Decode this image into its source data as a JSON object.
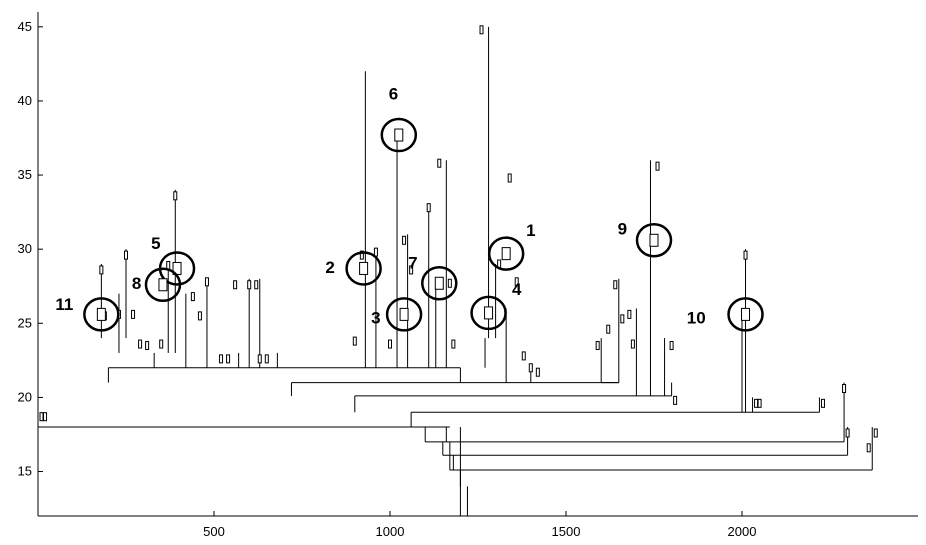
{
  "chart_data": {
    "type": "dendrogram",
    "title": "",
    "xlabel": "",
    "ylabel": "",
    "xlim": [
      0,
      2500
    ],
    "ylim": [
      12,
      46
    ],
    "x_ticks": [
      500,
      1000,
      1500,
      2000
    ],
    "y_ticks": [
      15,
      20,
      25,
      30,
      35,
      40,
      45
    ],
    "grid": false,
    "legend": "none",
    "colors": {
      "axis": "#000000",
      "tree": "#000000",
      "circle": "#000000"
    },
    "trunk": {
      "x": 1200,
      "y_bottom": 12,
      "y_top": 18
    },
    "merges": [
      {
        "x1": 0,
        "x2": 1170,
        "y": 18,
        "x_from": 1160,
        "x_to": 1170
      },
      {
        "x1": 1100,
        "x2": 2290,
        "y": 17
      },
      {
        "x1": 1150,
        "x2": 2300,
        "y": 16.1
      },
      {
        "x1": 1170,
        "x2": 2370,
        "y": 15.1
      },
      {
        "x1": 1060,
        "x2": 2220,
        "y": 19
      },
      {
        "x1": 900,
        "x2": 1800,
        "y": 20.1
      },
      {
        "x1": 720,
        "x2": 1650,
        "y": 21
      },
      {
        "x1": 200,
        "x2": 1200,
        "y": 22
      }
    ],
    "segments": [
      [
        1220,
        12,
        1220,
        14
      ],
      [
        1200,
        14,
        1200,
        15.1
      ],
      [
        1180,
        15.1,
        1180,
        16.1
      ],
      [
        1170,
        16.1,
        1170,
        17
      ],
      [
        1160,
        17,
        1160,
        18
      ],
      [
        1100,
        17,
        1100,
        18
      ],
      [
        2290,
        17,
        2290,
        21
      ],
      [
        1150,
        16.1,
        1150,
        17
      ],
      [
        2300,
        16.1,
        2300,
        18
      ],
      [
        1170,
        15.1,
        1170,
        16.1
      ],
      [
        2370,
        15.1,
        2370,
        18
      ],
      [
        1060,
        18,
        1060,
        19
      ],
      [
        2220,
        19,
        2220,
        20
      ],
      [
        900,
        19,
        900,
        20.1
      ],
      [
        1800,
        20.1,
        1800,
        21
      ],
      [
        720,
        20.1,
        720,
        21
      ],
      [
        1650,
        21,
        1650,
        28
      ],
      [
        200,
        21,
        200,
        22
      ],
      [
        1200,
        21,
        1200,
        22
      ],
      [
        0,
        18,
        0,
        19
      ],
      [
        330,
        22,
        330,
        23
      ],
      [
        570,
        22,
        570,
        23
      ],
      [
        680,
        22,
        680,
        23
      ],
      [
        960,
        22,
        960,
        30
      ],
      [
        1130,
        22,
        1130,
        27.5
      ],
      [
        1330,
        21,
        1330,
        26
      ],
      [
        1400,
        21,
        1400,
        22
      ],
      [
        1700,
        20.1,
        1700,
        26
      ],
      [
        1740,
        20.1,
        1740,
        36
      ],
      [
        1780,
        20.1,
        1780,
        24
      ],
      [
        2000,
        19,
        2000,
        25.5
      ],
      [
        2010,
        19,
        2010,
        30
      ],
      [
        2030,
        19,
        2030,
        20
      ],
      [
        1650,
        21,
        1600,
        21
      ],
      [
        1600,
        21,
        1600,
        24
      ],
      [
        1270,
        22,
        1270,
        24
      ],
      [
        1280,
        24,
        1280,
        45
      ],
      [
        1300,
        24,
        1300,
        29
      ],
      [
        1020,
        22,
        1020,
        38
      ],
      [
        930,
        22,
        930,
        42
      ],
      [
        1050,
        22,
        1050,
        31
      ],
      [
        1160,
        22,
        1160,
        36
      ],
      [
        1110,
        22,
        1110,
        33
      ],
      [
        180,
        24,
        180,
        29
      ],
      [
        230,
        23,
        230,
        27
      ],
      [
        250,
        24,
        250,
        30
      ],
      [
        390,
        23,
        390,
        34
      ],
      [
        370,
        23,
        370,
        29
      ],
      [
        420,
        22,
        420,
        27
      ],
      [
        480,
        22,
        480,
        28
      ],
      [
        600,
        22,
        600,
        28
      ],
      [
        630,
        22,
        630,
        28
      ]
    ],
    "leaves": [
      [
        10,
        18.7
      ],
      [
        20,
        18.7
      ],
      [
        180,
        28.6
      ],
      [
        190,
        25.5
      ],
      [
        230,
        25.6
      ],
      [
        250,
        29.6
      ],
      [
        270,
        25.6
      ],
      [
        290,
        23.6
      ],
      [
        310,
        23.5
      ],
      [
        350,
        23.6
      ],
      [
        370,
        28.9
      ],
      [
        390,
        33.6
      ],
      [
        440,
        26.8
      ],
      [
        460,
        25.5
      ],
      [
        480,
        27.8
      ],
      [
        520,
        22.6
      ],
      [
        540,
        22.6
      ],
      [
        560,
        27.6
      ],
      [
        600,
        27.6
      ],
      [
        620,
        27.6
      ],
      [
        630,
        22.6
      ],
      [
        650,
        22.6
      ],
      [
        900,
        23.8
      ],
      [
        920,
        29.6
      ],
      [
        960,
        29.8
      ],
      [
        1000,
        23.6
      ],
      [
        1040,
        30.6
      ],
      [
        1060,
        28.6
      ],
      [
        1110,
        32.8
      ],
      [
        1140,
        35.8
      ],
      [
        1170,
        27.7
      ],
      [
        1180,
        23.6
      ],
      [
        1260,
        44.8
      ],
      [
        1310,
        29.0
      ],
      [
        1340,
        34.8
      ],
      [
        1360,
        27.8
      ],
      [
        1380,
        22.8
      ],
      [
        1400,
        22.0
      ],
      [
        1420,
        21.7
      ],
      [
        1590,
        23.5
      ],
      [
        1620,
        24.6
      ],
      [
        1640,
        27.6
      ],
      [
        1660,
        25.3
      ],
      [
        1680,
        25.6
      ],
      [
        1690,
        23.6
      ],
      [
        1760,
        35.6
      ],
      [
        1800,
        23.5
      ],
      [
        1810,
        19.8
      ],
      [
        2010,
        29.6
      ],
      [
        2040,
        19.6
      ],
      [
        2050,
        19.6
      ],
      [
        2230,
        19.6
      ],
      [
        2290,
        20.6
      ],
      [
        2300,
        17.6
      ],
      [
        2360,
        16.6
      ],
      [
        2380,
        17.6
      ]
    ],
    "circled_nodes": [
      {
        "label": "1",
        "x": 1330,
        "y": 29.7,
        "label_x": 1400,
        "label_y": 31.2
      },
      {
        "label": "2",
        "x": 925,
        "y": 28.7,
        "label_x": 830,
        "label_y": 28.7
      },
      {
        "label": "3",
        "x": 1040,
        "y": 25.6,
        "label_x": 960,
        "label_y": 25.3
      },
      {
        "label": "4",
        "x": 1280,
        "y": 25.7,
        "label_x": 1360,
        "label_y": 27.2
      },
      {
        "label": "5",
        "x": 395,
        "y": 28.7,
        "label_x": 335,
        "label_y": 30.3
      },
      {
        "label": "6",
        "x": 1025,
        "y": 37.7,
        "label_x": 1010,
        "label_y": 40.4
      },
      {
        "label": "7",
        "x": 1140,
        "y": 27.7,
        "label_x": 1065,
        "label_y": 29.0
      },
      {
        "label": "8",
        "x": 355,
        "y": 27.6,
        "label_x": 280,
        "label_y": 27.6
      },
      {
        "label": "9",
        "x": 1750,
        "y": 30.6,
        "label_x": 1660,
        "label_y": 31.3
      },
      {
        "label": "10",
        "x": 2010,
        "y": 25.6,
        "label_x": 1870,
        "label_y": 25.3
      },
      {
        "label": "11",
        "x": 180,
        "y": 25.6,
        "label_x": 75,
        "label_y": 26.2
      }
    ]
  }
}
